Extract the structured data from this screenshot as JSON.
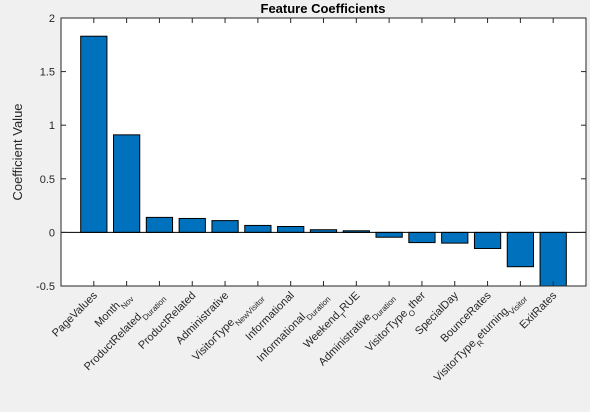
{
  "chart_data": {
    "type": "bar",
    "title": "Feature Coefficients",
    "xlabel": "",
    "ylabel": "Coefficient Value",
    "ylim": [
      -0.5,
      2
    ],
    "yticks": [
      -0.5,
      0,
      0.5,
      1,
      1.5,
      2
    ],
    "ytick_labels": [
      "-0.5",
      "0",
      "0.5",
      "1",
      "1.5",
      "2"
    ],
    "grid": false,
    "bar_color": "#0072BD",
    "categories": [
      {
        "base": "PageValues",
        "sub": ""
      },
      {
        "base": "Month",
        "sub": "Nov"
      },
      {
        "base": "ProductRelated",
        "sub": "Duration"
      },
      {
        "base": "ProductRelated",
        "sub": ""
      },
      {
        "base": "Administrative",
        "sub": ""
      },
      {
        "base": "VisitorType",
        "sub": "New",
        "mid": "",
        "sub2": "Visitor"
      },
      {
        "base": "Informational",
        "sub": ""
      },
      {
        "base": "Informational",
        "sub": "Duration"
      },
      {
        "base": "Weekend",
        "sub": "T",
        "tail": "RUE"
      },
      {
        "base": "Administrative",
        "sub": "Duration"
      },
      {
        "base": "VisitorType",
        "sub": "O",
        "tail": "ther"
      },
      {
        "base": "SpecialDay",
        "sub": ""
      },
      {
        "base": "BounceRates",
        "sub": ""
      },
      {
        "base": "VisitorType",
        "sub": "R",
        "tail": "eturning",
        "sub2": "Visitor"
      },
      {
        "base": "ExitRates",
        "sub": ""
      }
    ],
    "values": [
      1.83,
      0.91,
      0.14,
      0.13,
      0.11,
      0.065,
      0.055,
      0.025,
      0.015,
      -0.045,
      -0.095,
      -0.1,
      -0.15,
      -0.32,
      -0.5
    ]
  }
}
